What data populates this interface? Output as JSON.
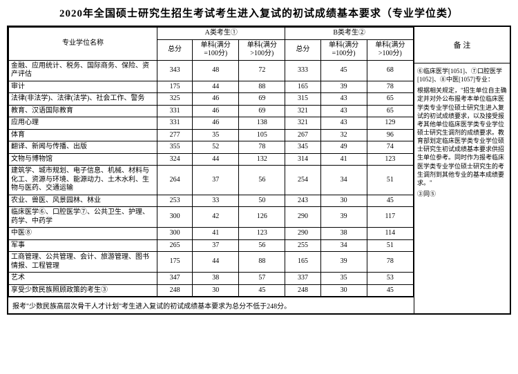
{
  "title": "2020年全国硕士研究生招生考试考生进入复试的初试成绩基本要求（专业学位类）",
  "headers": {
    "name": "专业学位名称",
    "groupA": "A类考生①",
    "groupB": "B类考生②",
    "total": "总分",
    "sub1": "单科(满分=100分)",
    "sub2": "单科(满分>100分)",
    "remark": "备  注"
  },
  "rows": [
    {
      "name": "金融、应用统计、税务、国际商务、保险、资产评估",
      "a": [
        "343",
        "48",
        "72"
      ],
      "b": [
        "333",
        "45",
        "68"
      ]
    },
    {
      "name": "审计",
      "a": [
        "175",
        "44",
        "88"
      ],
      "b": [
        "165",
        "39",
        "78"
      ]
    },
    {
      "name": "法律(非法学)、法律(法学)、社会工作、警务",
      "a": [
        "325",
        "46",
        "69"
      ],
      "b": [
        "315",
        "43",
        "65"
      ]
    },
    {
      "name": "教育、汉语国际教育",
      "a": [
        "331",
        "46",
        "69"
      ],
      "b": [
        "321",
        "43",
        "65"
      ]
    },
    {
      "name": "应用心理",
      "a": [
        "331",
        "46",
        "138"
      ],
      "b": [
        "321",
        "43",
        "129"
      ]
    },
    {
      "name": "体育",
      "a": [
        "277",
        "35",
        "105"
      ],
      "b": [
        "267",
        "32",
        "96"
      ]
    },
    {
      "name": "翻译、新闻与传播、出版",
      "a": [
        "355",
        "52",
        "78"
      ],
      "b": [
        "345",
        "49",
        "74"
      ]
    },
    {
      "name": "文物与博物馆",
      "a": [
        "324",
        "44",
        "132"
      ],
      "b": [
        "314",
        "41",
        "123"
      ]
    },
    {
      "name": "建筑学、城市规划、电子信息、机械、材料与化工、资源与环境、能源动力、土木水利、生物与医药、交通运输",
      "a": [
        "264",
        "37",
        "56"
      ],
      "b": [
        "254",
        "34",
        "51"
      ]
    },
    {
      "name": "农业、兽医、风景园林、林业",
      "a": [
        "253",
        "33",
        "50"
      ],
      "b": [
        "243",
        "30",
        "45"
      ]
    },
    {
      "name": "临床医学⑥、口腔医学⑦、公共卫生、护理、药学、中药学",
      "a": [
        "300",
        "42",
        "126"
      ],
      "b": [
        "290",
        "39",
        "117"
      ]
    },
    {
      "name": "中医⑧",
      "a": [
        "300",
        "41",
        "123"
      ],
      "b": [
        "290",
        "38",
        "114"
      ]
    },
    {
      "name": "军事",
      "a": [
        "265",
        "37",
        "56"
      ],
      "b": [
        "255",
        "34",
        "51"
      ]
    },
    {
      "name": "工商管理、公共管理、会计、旅游管理、图书情报、工程管理",
      "a": [
        "175",
        "44",
        "88"
      ],
      "b": [
        "165",
        "39",
        "78"
      ]
    },
    {
      "name": "艺术",
      "a": [
        "347",
        "38",
        "57"
      ],
      "b": [
        "337",
        "35",
        "53"
      ]
    },
    {
      "name": "享受少数民族照顾政策的考生③",
      "a": [
        "248",
        "30",
        "45"
      ],
      "b": [
        "248",
        "30",
        "45"
      ]
    }
  ],
  "footer": "报考\"少数民族高层次骨干人才计划\"考生进入复试的初试成绩基本要求为总分不低于248分。",
  "remark_body": [
    "⑥临床医学[1051]、⑦口腔医学[1052]、⑧中医[1057]专业：",
    "根据相关规定，\"招生单位自主确定并对外公布报考本单位临床医学类专业学位硕士研究生进入复试的初试成绩要求，以及接受报考其他单位临床医学类专业学位硕士研究生调剂的成绩要求。教育部划定临床医学类专业学位硕士研究生初试成绩基本要求供招生单位参考。同时作为报考临床医学类专业学位硕士研究生的考生调剂到其他专业的基本成绩要求。\"",
    "③同⑤"
  ],
  "colors": {
    "border": "#000000",
    "bg": "#ffffff",
    "text": "#000000"
  }
}
